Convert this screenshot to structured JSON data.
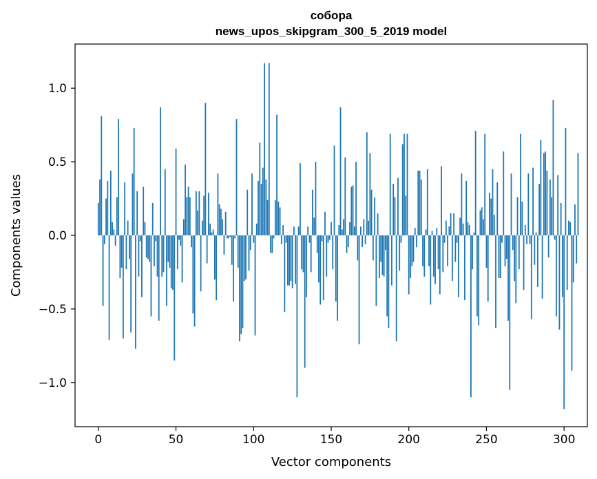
{
  "chart_data": {
    "type": "bar",
    "title": "собора",
    "subtitle": "news_upos_skipgram_300_5_2019 model",
    "xlabel": "Vector components",
    "ylabel": "Components values",
    "xlim": [
      -15,
      315
    ],
    "ylim": [
      -1.3,
      1.3
    ],
    "xticks": [
      0,
      50,
      100,
      150,
      200,
      250,
      300
    ],
    "xtick_labels": [
      "0",
      "50",
      "100",
      "150",
      "200",
      "250",
      "300"
    ],
    "yticks": [
      1.0,
      0.5,
      0.0,
      -0.5,
      -1.0
    ],
    "ytick_labels": [
      "1.0",
      "0.5",
      "0.0",
      "−0.5",
      "−1.0"
    ],
    "grid": false,
    "bar_color": "#1f77b4",
    "values": [
      0.22,
      0.38,
      0.81,
      -0.48,
      -0.06,
      0.25,
      0.37,
      -0.71,
      0.44,
      0.09,
      0.04,
      -0.07,
      0.26,
      0.79,
      -0.29,
      -0.22,
      -0.7,
      0.36,
      -0.23,
      0.1,
      -0.16,
      -0.66,
      0.42,
      0.73,
      -0.77,
      0.3,
      -0.28,
      -0.04,
      -0.42,
      0.33,
      0.09,
      -0.15,
      -0.16,
      -0.18,
      -0.55,
      0.22,
      -0.21,
      -0.04,
      -0.28,
      -0.58,
      0.87,
      -0.28,
      -0.25,
      0.45,
      -0.48,
      -0.18,
      -0.22,
      -0.36,
      -0.37,
      -0.85,
      0.59,
      -0.23,
      -0.03,
      -0.07,
      -0.32,
      0.11,
      0.48,
      0.26,
      0.33,
      0.26,
      -0.08,
      -0.53,
      -0.62,
      0.3,
      0.17,
      0.3,
      -0.38,
      0.1,
      0.27,
      0.9,
      -0.19,
      0.29,
      0.08,
      0.02,
      0.04,
      -0.3,
      -0.44,
      0.42,
      0.21,
      0.18,
      0.11,
      -0.13,
      0.16,
      -0.02,
      -0.02,
      -0.01,
      -0.2,
      -0.45,
      -0.02,
      0.79,
      -0.22,
      -0.72,
      -0.67,
      -0.63,
      -0.31,
      -0.3,
      0.31,
      -0.24,
      -0.1,
      0.42,
      -0.05,
      -0.68,
      0.08,
      0.37,
      0.63,
      0.35,
      0.46,
      1.17,
      0.38,
      0.24,
      1.17,
      -0.12,
      -0.12,
      -0.02,
      0.24,
      0.82,
      0.23,
      0.19,
      -0.06,
      0.07,
      -0.52,
      -0.05,
      -0.34,
      -0.34,
      -0.31,
      -0.36,
      0.06,
      -0.33,
      -1.1,
      0.06,
      0.49,
      -0.23,
      -0.25,
      -0.9,
      -0.42,
      0.06,
      -0.05,
      -0.25,
      0.31,
      0.12,
      0.5,
      -0.12,
      -0.32,
      -0.47,
      -0.04,
      -0.44,
      0.16,
      -0.28,
      -0.05,
      -0.03,
      0.09,
      -0.23,
      0.61,
      -0.45,
      -0.58,
      0.07,
      0.87,
      0.04,
      0.11,
      0.53,
      -0.12,
      -0.08,
      0.09,
      0.33,
      0.34,
      0.06,
      0.5,
      -0.17,
      -0.74,
      0.06,
      -0.08,
      0.11,
      -0.06,
      0.7,
      0.1,
      0.56,
      0.31,
      -0.17,
      0.26,
      -0.48,
      0.15,
      -0.29,
      -0.18,
      -0.27,
      -0.28,
      -0.1,
      -0.55,
      -0.63,
      0.69,
      -0.34,
      0.35,
      0.26,
      -0.72,
      0.39,
      -0.24,
      -0.05,
      0.62,
      0.69,
      0.27,
      0.69,
      -0.4,
      -0.29,
      -0.21,
      -0.18,
      0.05,
      -0.08,
      0.44,
      0.44,
      0.38,
      -0.21,
      -0.28,
      0.04,
      0.45,
      -0.21,
      -0.47,
      0.03,
      -0.28,
      -0.33,
      0.05,
      -0.23,
      -0.4,
      0.47,
      -0.25,
      -0.05,
      0.1,
      -0.21,
      0.06,
      0.15,
      -0.31,
      0.15,
      -0.18,
      -0.05,
      -0.42,
      0.12,
      0.42,
      0.08,
      -0.44,
      0.37,
      0.09,
      0.07,
      -1.1,
      -0.23,
      0.02,
      0.71,
      -0.55,
      -0.61,
      0.17,
      0.19,
      0.11,
      0.69,
      -0.22,
      -0.45,
      0.29,
      0.25,
      0.45,
      0.14,
      -0.63,
      0.36,
      -0.29,
      -0.29,
      -0.05,
      0.57,
      -0.21,
      -0.16,
      -0.58,
      -1.05,
      0.42,
      -0.1,
      -0.31,
      -0.46,
      0.26,
      -0.23,
      0.69,
      0.23,
      -0.37,
      0.07,
      -0.06,
      0.42,
      -0.06,
      -0.57,
      0.46,
      -0.2,
      0.02,
      -0.35,
      0.35,
      0.65,
      -0.43,
      0.56,
      0.57,
      0.44,
      -0.15,
      0.38,
      0.26,
      0.92,
      -0.03,
      -0.55,
      0.41,
      -0.64,
      0.22,
      -0.42,
      -1.18,
      0.73,
      -0.37,
      0.1,
      0.09,
      -0.92,
      -0.32,
      0.21,
      -0.19,
      0.56
    ]
  }
}
